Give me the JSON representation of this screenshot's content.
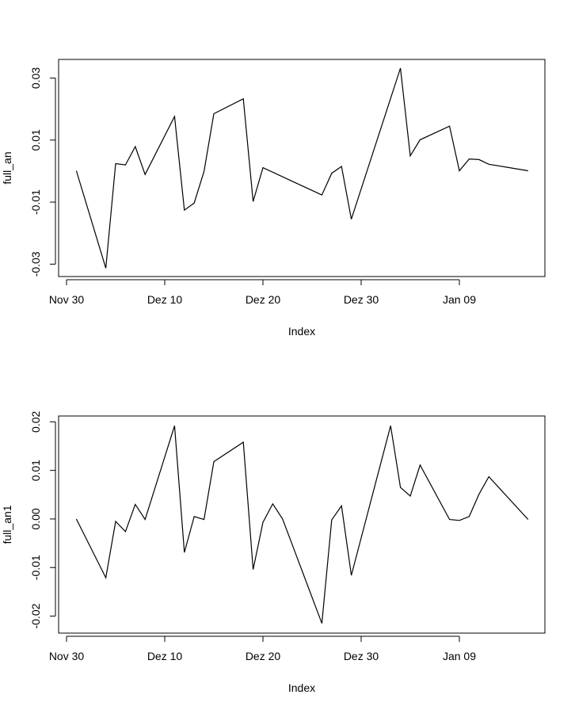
{
  "chart_data": [
    {
      "type": "line",
      "title": "",
      "xlabel": "Index",
      "ylabel": "full_an",
      "x_ticks": [
        "Nov 30",
        "Dez 10",
        "Dez 20",
        "Dez 30",
        "Jan 09"
      ],
      "y_ticks": [
        "-0.03",
        "-0.01",
        "0.01",
        "0.03"
      ],
      "ylim": [
        -0.034,
        0.036
      ],
      "grid": false,
      "series": [
        {
          "x": [
            "Dez 01",
            "Dez 04",
            "Dez 05",
            "Dez 06",
            "Dez 07",
            "Dez 08",
            "Dez 11",
            "Dez 12",
            "Dez 13",
            "Dez 14",
            "Dez 15",
            "Dez 18",
            "Dez 19",
            "Dez 20",
            "Dez 26",
            "Dez 27",
            "Dez 28",
            "Dez 29",
            "Jan 03",
            "Jan 04",
            "Jan 05",
            "Jan 08",
            "Jan 09",
            "Jan 10",
            "Jan 11",
            "Jan 12",
            "Jan 16"
          ],
          "values": [
            0.0001,
            -0.0313,
            0.0024,
            0.002,
            0.0079,
            -0.0011,
            0.0176,
            -0.0126,
            -0.0103,
            -0.0001,
            0.0185,
            0.0233,
            -0.0098,
            0.0011,
            -0.0077,
            -0.0007,
            0.0015,
            -0.0155,
            0.0332,
            0.0049,
            0.0101,
            0.0145,
            0.0001,
            0.0039,
            0.0037,
            0.0022,
            0.0001
          ]
        }
      ]
    },
    {
      "type": "line",
      "title": "",
      "xlabel": "Index",
      "ylabel": "full_an1",
      "x_ticks": [
        "Nov 30",
        "Dez 10",
        "Dez 20",
        "Dez 30",
        "Jan 09"
      ],
      "y_ticks": [
        "-0.02",
        "-0.01",
        "0.00",
        "0.01",
        "0.02"
      ],
      "ylim": [
        -0.0235,
        0.0212
      ],
      "grid": false,
      "series": [
        {
          "x": [
            "Dez 01",
            "Dez 04",
            "Dez 05",
            "Dez 06",
            "Dez 07",
            "Dez 08",
            "Dez 11",
            "Dez 12",
            "Dez 13",
            "Dez 14",
            "Dez 15",
            "Dez 18",
            "Dez 19",
            "Dez 20",
            "Dez 21",
            "Dez 22",
            "Dez 26",
            "Dez 27",
            "Dez 28",
            "Dez 29",
            "Jan 02",
            "Jan 03",
            "Jan 04",
            "Jan 05",
            "Jan 08",
            "Jan 09",
            "Jan 10",
            "Jan 11",
            "Jan 12",
            "Jan 16"
          ],
          "values": [
            0.0,
            -0.0121,
            -0.0005,
            -0.0026,
            0.003,
            -0.0001,
            0.0192,
            -0.0069,
            0.0005,
            -0.0001,
            0.0118,
            0.0158,
            -0.0104,
            -0.0007,
            0.0031,
            0.0,
            -0.0215,
            -0.0002,
            0.0027,
            -0.0116,
            0.0192,
            0.0065,
            0.0047,
            0.0111,
            -0.0001,
            -0.0003,
            0.0005,
            0.0051,
            0.0087,
            -0.0001
          ]
        }
      ]
    }
  ]
}
